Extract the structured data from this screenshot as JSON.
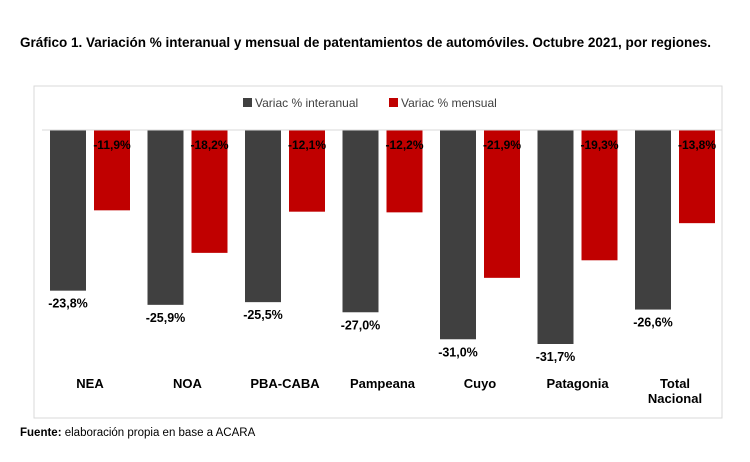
{
  "chart_data": {
    "type": "bar",
    "title": "Gráfico 1. Variación % interanual y mensual de patentamientos de automóviles. Octubre 2021, por regiones.",
    "categories": [
      "NEA",
      "NOA",
      "PBA-CABA",
      "Pampeana",
      "Cuyo",
      "Patagonia",
      "Total Nacional"
    ],
    "series": [
      {
        "name": "Variac % interanual",
        "color": "#404040",
        "values": [
          -23.8,
          -25.9,
          -25.5,
          -27.0,
          -31.0,
          -31.7,
          -26.6
        ],
        "labels": [
          "-23,8%",
          "-25,9%",
          "-25,5%",
          "-27,0%",
          "-31,0%",
          "-31,7%",
          "-26,6%"
        ]
      },
      {
        "name": "Variac % mensual",
        "color": "#c00000",
        "values": [
          -11.9,
          -18.2,
          -12.1,
          -12.2,
          -21.9,
          -19.3,
          -13.8
        ],
        "labels": [
          "-11,9%",
          "-18,2%",
          "-12,1%",
          "-12,2%",
          "-21,9%",
          "-19,3%",
          "-13,8%"
        ]
      }
    ],
    "legend": "top",
    "grid": false,
    "ylim": [
      -35,
      0
    ]
  },
  "source": {
    "label": "Fuente:",
    "text": " elaboración propia en base a ACARA"
  }
}
